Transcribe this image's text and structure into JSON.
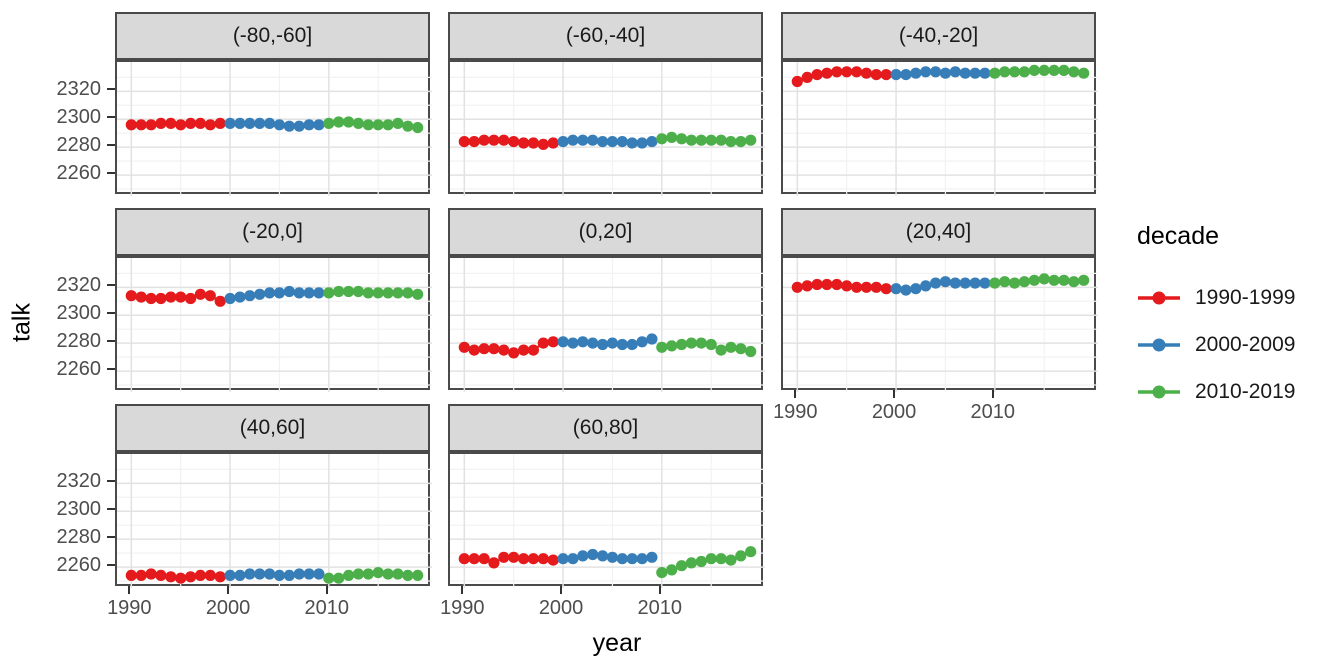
{
  "chart_data": {
    "type": "line",
    "title": "",
    "xlabel": "year",
    "ylabel": "talk",
    "legend_title": "decade",
    "x_ticks": [
      1990,
      2000,
      2010
    ],
    "x_minor_ticks": [
      1995,
      2005,
      2015
    ],
    "y_ticks": [
      2260,
      2280,
      2300,
      2320
    ],
    "y_minor_ticks": [
      2250,
      2270,
      2290,
      2310,
      2330
    ],
    "x_domain": [
      1988.55,
      2020.45
    ],
    "y_domain": [
      2245,
      2341
    ],
    "grid": true,
    "legend_position": "right",
    "series_meta": [
      {
        "name": "1990-1999",
        "color": "#E41A1C",
        "start_year": 1990
      },
      {
        "name": "2000-2009",
        "color": "#377EB8",
        "start_year": 2000
      },
      {
        "name": "2010-2019",
        "color": "#4DAF4A",
        "start_year": 2010
      }
    ],
    "panels": [
      {
        "label": "(-80,-60]",
        "series": [
          [
            2296,
            2296,
            2296,
            2297,
            2297,
            2296,
            2297,
            2297,
            2296,
            2297
          ],
          [
            2297,
            2297,
            2297,
            2297,
            2297,
            2296,
            2295,
            2295,
            2296,
            2296
          ],
          [
            2297,
            2298,
            2298,
            2297,
            2296,
            2296,
            2296,
            2297,
            2295,
            2294
          ]
        ]
      },
      {
        "label": "(-60,-40]",
        "series": [
          [
            2284,
            2284,
            2285,
            2285,
            2285,
            2284,
            2283,
            2283,
            2282,
            2283
          ],
          [
            2284,
            2285,
            2285,
            2285,
            2284,
            2284,
            2284,
            2283,
            2283,
            2284
          ],
          [
            2286,
            2287,
            2286,
            2285,
            2285,
            2285,
            2285,
            2284,
            2284,
            2285
          ]
        ]
      },
      {
        "label": "(-40,-20]",
        "series": [
          [
            2327,
            2330,
            2332,
            2333,
            2334,
            2334,
            2334,
            2333,
            2332,
            2332
          ],
          [
            2332,
            2332,
            2333,
            2334,
            2334,
            2333,
            2334,
            2333,
            2333,
            2333
          ],
          [
            2333,
            2334,
            2334,
            2334,
            2335,
            2335,
            2335,
            2335,
            2334,
            2333
          ]
        ]
      },
      {
        "label": "(-20,0]",
        "series": [
          [
            2314,
            2313,
            2312,
            2312,
            2313,
            2313,
            2312,
            2315,
            2314,
            2310
          ],
          [
            2312,
            2313,
            2314,
            2315,
            2316,
            2316,
            2317,
            2316,
            2316,
            2316
          ],
          [
            2316,
            2317,
            2317,
            2317,
            2316,
            2316,
            2316,
            2316,
            2316,
            2315
          ]
        ]
      },
      {
        "label": "(0,20]",
        "series": [
          [
            2277,
            2275,
            2276,
            2276,
            2275,
            2273,
            2275,
            2275,
            2280,
            2281
          ],
          [
            2281,
            2280,
            2281,
            2280,
            2279,
            2280,
            2279,
            2279,
            2281,
            2283
          ],
          [
            2277,
            2278,
            2279,
            2280,
            2280,
            2279,
            2275,
            2277,
            2276,
            2274
          ]
        ]
      },
      {
        "label": "(20,40]",
        "series": [
          [
            2320,
            2321,
            2322,
            2322,
            2322,
            2321,
            2320,
            2320,
            2320,
            2319
          ],
          [
            2319,
            2318,
            2319,
            2321,
            2323,
            2324,
            2323,
            2323,
            2323,
            2323
          ],
          [
            2323,
            2324,
            2323,
            2324,
            2325,
            2326,
            2325,
            2325,
            2324,
            2325
          ]
        ]
      },
      {
        "label": "(40,60]",
        "series": [
          [
            2254,
            2254,
            2255,
            2254,
            2253,
            2252,
            2253,
            2254,
            2254,
            2253
          ],
          [
            2254,
            2254,
            2255,
            2255,
            2255,
            2254,
            2254,
            2255,
            2255,
            2255
          ],
          [
            2252,
            2252,
            2254,
            2255,
            2255,
            2256,
            2255,
            2255,
            2254,
            2254
          ]
        ]
      },
      {
        "label": "(60,80]",
        "series": [
          [
            2266,
            2266,
            2266,
            2263,
            2267,
            2267,
            2266,
            2266,
            2266,
            2265
          ],
          [
            2266,
            2266,
            2268,
            2269,
            2268,
            2267,
            2266,
            2266,
            2266,
            2267
          ],
          [
            2256,
            2258,
            2261,
            2263,
            2264,
            2266,
            2266,
            2265,
            2268,
            2271
          ]
        ]
      }
    ]
  },
  "colors": {
    "strip_background": "#D9D9D9",
    "panel_border": "#4a4a4a",
    "grid_major": "#E2E2E2",
    "grid_minor": "#F2F2F2",
    "tick_text": "#4D4D4D"
  }
}
